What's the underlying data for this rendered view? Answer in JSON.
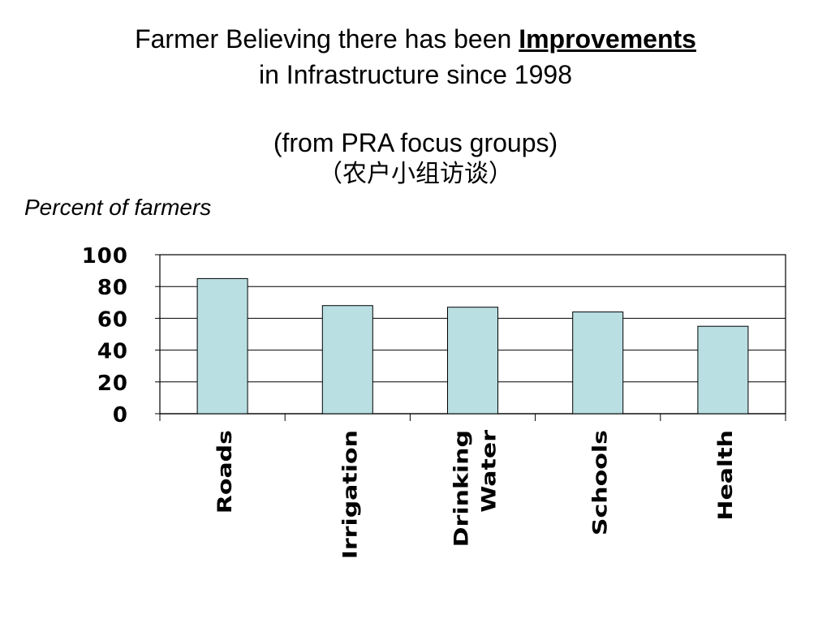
{
  "slide": {
    "title_prefix": "Farmer Believing there has been ",
    "title_emphasis": "Improvements",
    "title_line2": "in Infrastructure since 1998",
    "subtitle": "(from PRA focus groups)",
    "subtitle_zh": "（农户小组访谈）"
  },
  "chart_data": {
    "type": "bar",
    "title": "Farmer Believing there has been Improvements in Infrastructure since 1998",
    "ylabel": "Percent of farmers",
    "xlabel": "",
    "categories": [
      "Roads",
      "Irrigation",
      "Drinking Water",
      "Schools",
      "Health"
    ],
    "category_lines": [
      [
        "Roads"
      ],
      [
        "Irrigation"
      ],
      [
        "Drinking",
        "Water"
      ],
      [
        "Schools"
      ],
      [
        "Health"
      ]
    ],
    "values": [
      85,
      68,
      67,
      64,
      55
    ],
    "ylim": [
      0,
      100
    ],
    "yticks": [
      0,
      20,
      40,
      60,
      80,
      100
    ],
    "grid": true,
    "legend": "none",
    "bar_color": "#b9dfe3",
    "bar_edge_color": "#000000"
  }
}
